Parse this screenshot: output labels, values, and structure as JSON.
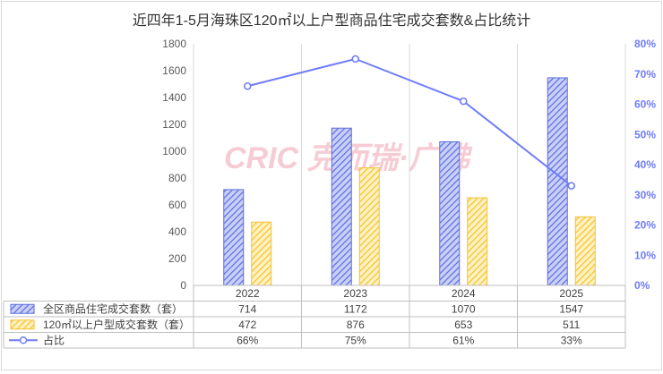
{
  "chart_data": {
    "type": "bar",
    "title": "近四年1-5月海珠区120㎡以上户型商品住宅成交套数&占比统计",
    "categories": [
      "2022",
      "2023",
      "2024",
      "2025"
    ],
    "series": [
      {
        "name": "全区商品住宅成交套数（套）",
        "type": "bar",
        "axis": "left",
        "color": "#5b6ee1",
        "values": [
          714,
          1172,
          1070,
          1547
        ],
        "labels": [
          "714",
          "1172",
          "1070",
          "1547"
        ]
      },
      {
        "name": "120㎡以上户型成交套数（套）",
        "type": "bar",
        "axis": "left",
        "color": "#f2c230",
        "values": [
          472,
          876,
          653,
          511
        ],
        "labels": [
          "472",
          "876",
          "653",
          "511"
        ]
      },
      {
        "name": "占比",
        "type": "line",
        "axis": "right",
        "color": "#6f7cf7",
        "values": [
          66,
          75,
          61,
          33
        ],
        "labels": [
          "66%",
          "75%",
          "61%",
          "33%"
        ]
      }
    ],
    "y_left": {
      "min": 0,
      "max": 1800,
      "step": 200,
      "ticks": [
        "0",
        "200",
        "400",
        "600",
        "800",
        "1000",
        "1200",
        "1400",
        "1600",
        "1800"
      ]
    },
    "y_right": {
      "min": 0,
      "max": 80,
      "step": 10,
      "ticks": [
        "0%",
        "10%",
        "20%",
        "30%",
        "40%",
        "50%",
        "60%",
        "70%",
        "80%"
      ]
    },
    "grid": "vertical category separators",
    "legend": "data table below x-axis"
  },
  "watermark": "CRIC 克而瑞·广佛"
}
